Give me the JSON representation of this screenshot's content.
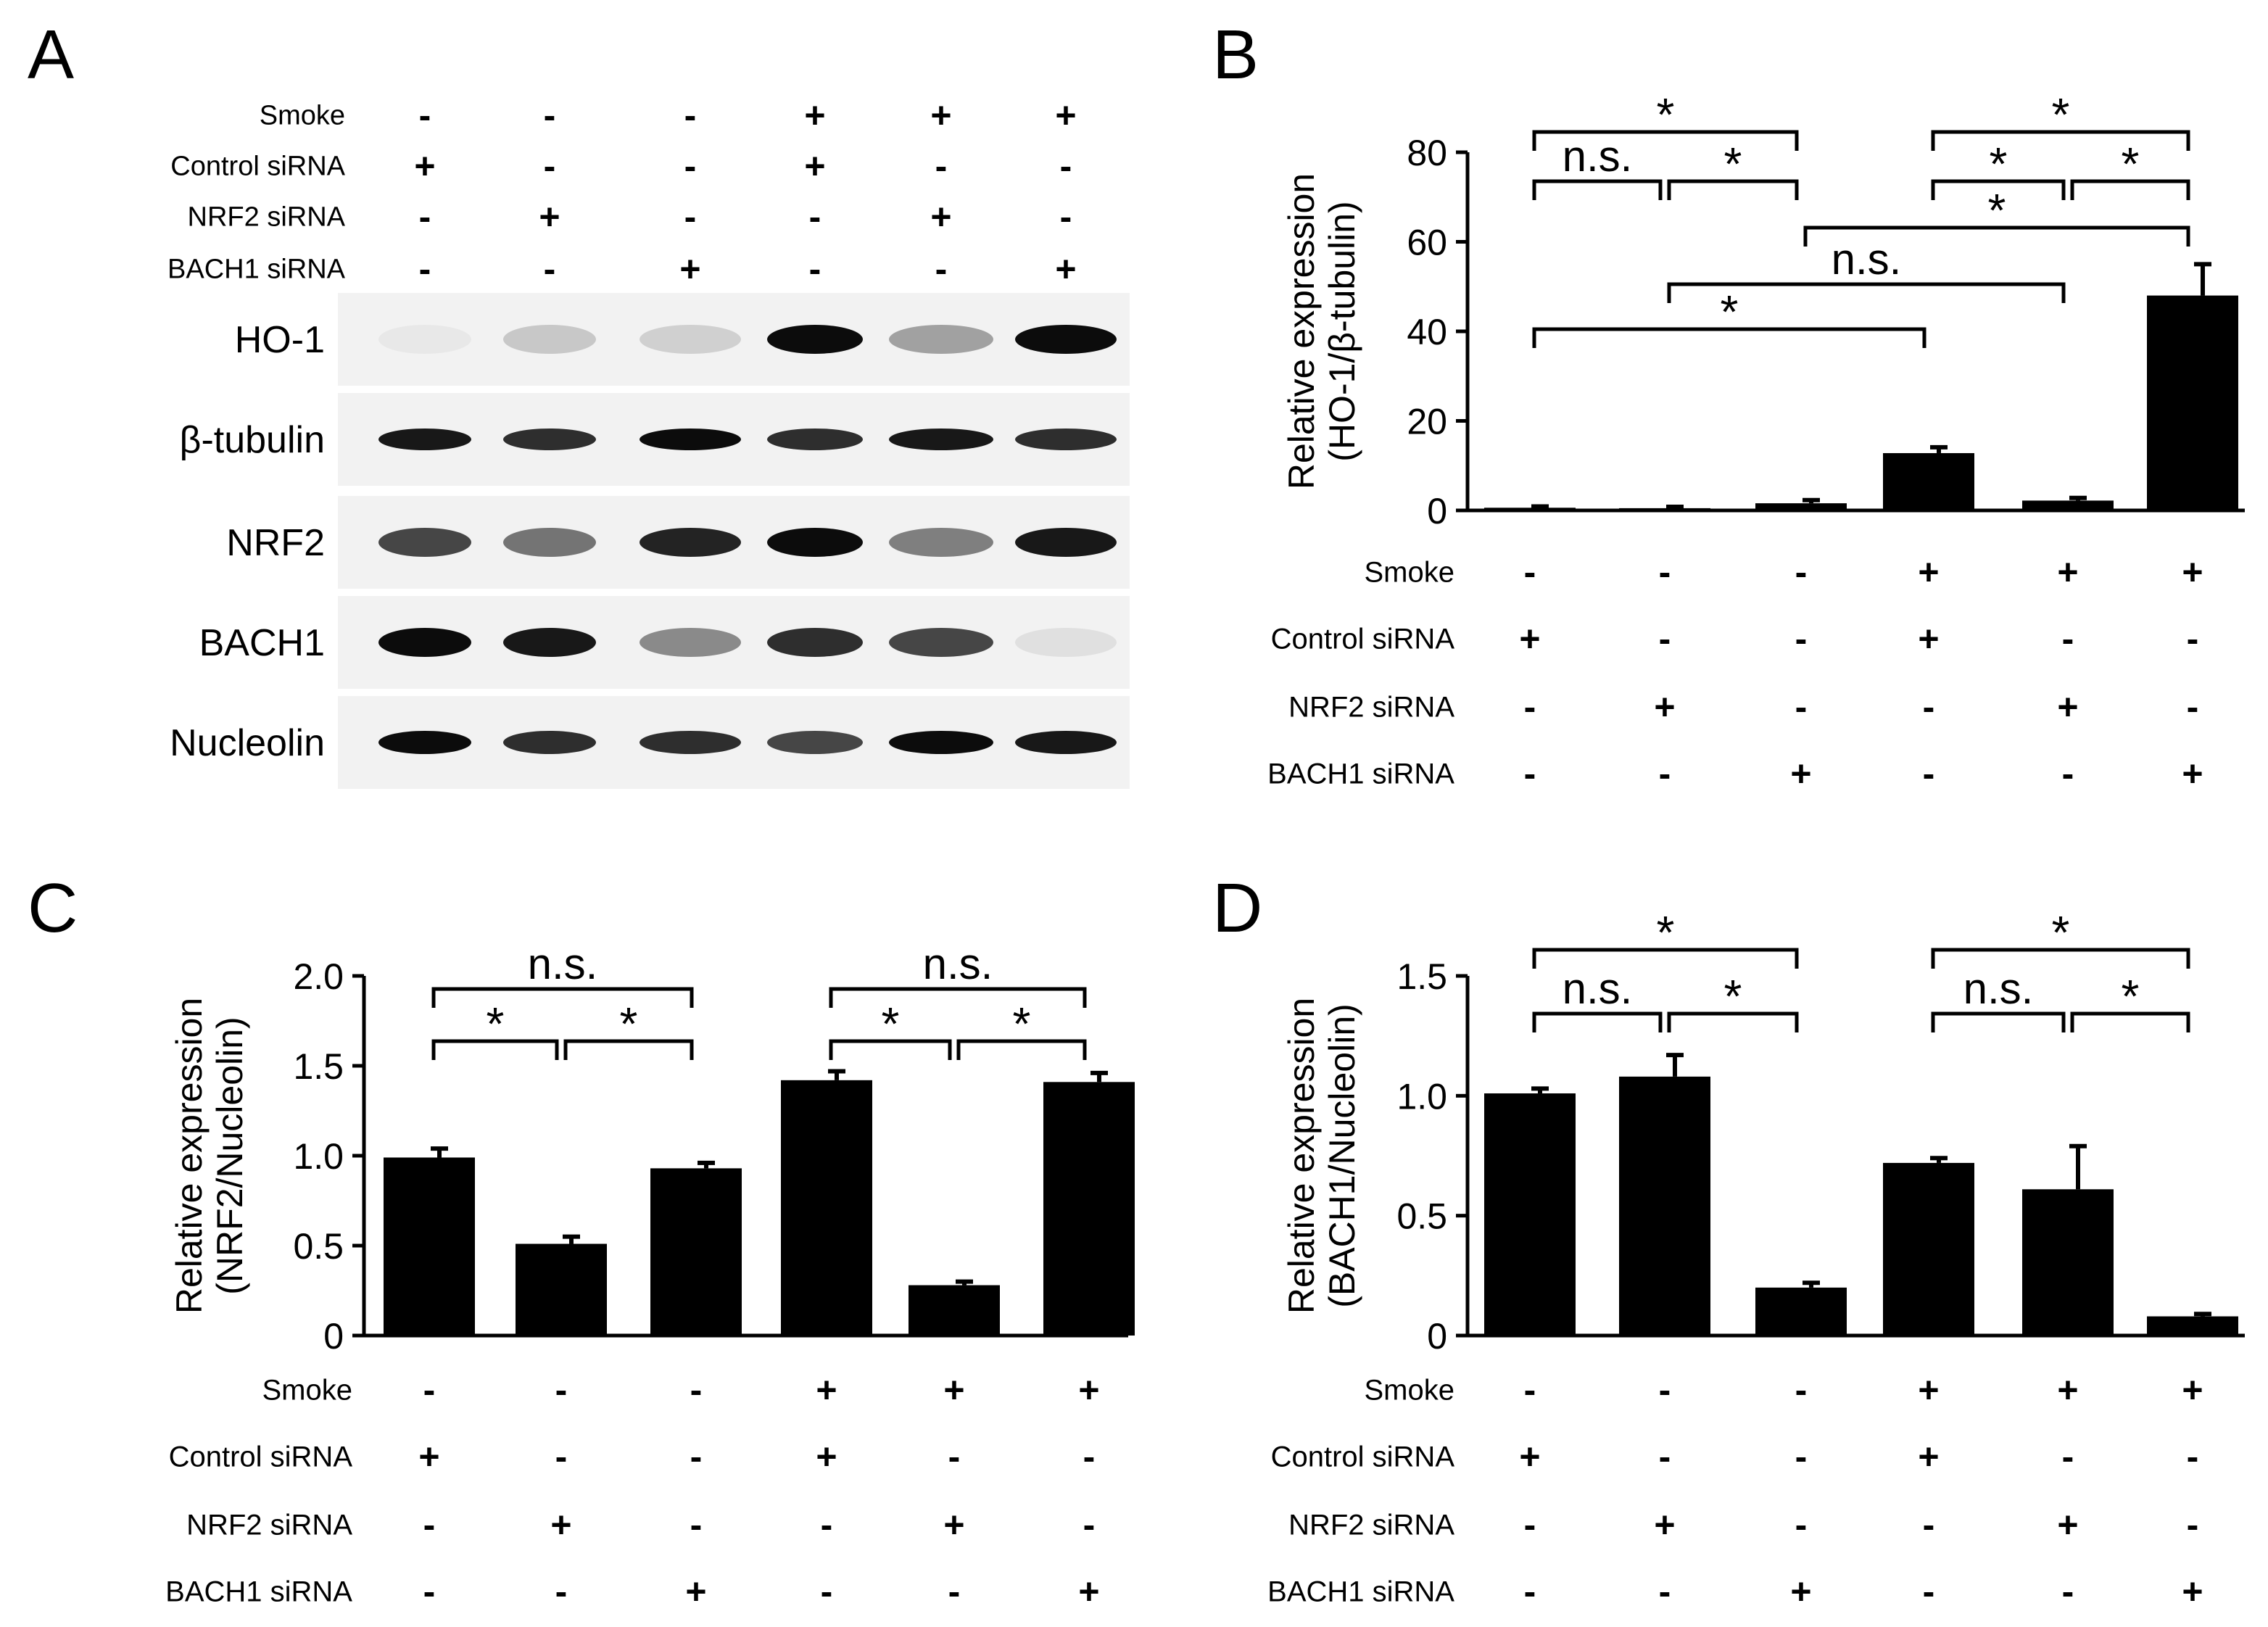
{
  "colors": {
    "bar": "#000000",
    "ink": "#000000",
    "blot_bg": "#f2f2f2",
    "band": "#0c0c0c"
  },
  "panel_letters": [
    "A",
    "B",
    "C",
    "D"
  ],
  "conditions": {
    "row_labels": [
      "Smoke",
      "Control siRNA",
      "NRF2 siRNA",
      "BACH1 siRNA"
    ],
    "signs": [
      [
        "-",
        "-",
        "-",
        "+",
        "+",
        "+"
      ],
      [
        "+",
        "-",
        "-",
        "+",
        "-",
        "-"
      ],
      [
        "-",
        "+",
        "-",
        "-",
        "+",
        "-"
      ],
      [
        "-",
        "-",
        "+",
        "-",
        "-",
        "+"
      ]
    ]
  },
  "western_blot": {
    "rows": [
      {
        "label": "HO-1",
        "intensities": [
          0.04,
          0.18,
          0.15,
          1.0,
          0.35,
          1.0
        ]
      },
      {
        "label": "β-tubulin",
        "intensities": [
          0.95,
          0.85,
          1.0,
          0.85,
          0.95,
          0.85
        ]
      },
      {
        "label": "NRF2",
        "intensities": [
          0.75,
          0.55,
          0.9,
          1.0,
          0.5,
          0.95
        ]
      },
      {
        "label": "BACH1",
        "intensities": [
          1.0,
          0.95,
          0.45,
          0.85,
          0.75,
          0.08
        ]
      },
      {
        "label": "Nucleolin",
        "intensities": [
          1.0,
          0.85,
          0.85,
          0.75,
          1.0,
          0.95
        ]
      }
    ]
  },
  "chart_data": [
    {
      "panel": "B",
      "type": "bar",
      "ylabel": [
        "Relative expression",
        "(HO-1/β-tubulin)"
      ],
      "ylim": [
        0,
        80
      ],
      "yticks": [
        "0",
        "20",
        "40",
        "60",
        "80"
      ],
      "ytick_values": [
        0,
        20,
        40,
        60,
        80
      ],
      "values": [
        0.6,
        0.5,
        1.6,
        12.8,
        2.2,
        48
      ],
      "errors": [
        0.3,
        0.3,
        0.7,
        1.3,
        0.6,
        7
      ],
      "brackets": [
        {
          "from": 0,
          "to": 2,
          "label": "*"
        },
        {
          "from": 3,
          "to": 5,
          "label": "*"
        },
        {
          "from": 0,
          "to": 1,
          "label": "n.s."
        },
        {
          "from": 1,
          "to": 2,
          "label": "*"
        },
        {
          "from": 3,
          "to": 4,
          "label": "*"
        },
        {
          "from": 4,
          "to": 5,
          "label": "*"
        },
        {
          "from": 2,
          "to": 5,
          "label": "*"
        },
        {
          "from": 1,
          "to": 4,
          "label": "n.s."
        },
        {
          "from": 0,
          "to": 3,
          "label": "*"
        }
      ]
    },
    {
      "panel": "C",
      "type": "bar",
      "ylabel": [
        "Relative expression",
        "(NRF2/Nucleolin)"
      ],
      "ylim": [
        0,
        2.0
      ],
      "yticks": [
        "0",
        "0.5",
        "1.0",
        "1.5",
        "2.0"
      ],
      "ytick_values": [
        0,
        0.5,
        1.0,
        1.5,
        2.0
      ],
      "values": [
        0.99,
        0.51,
        0.93,
        1.42,
        0.28,
        1.41
      ],
      "errors": [
        0.05,
        0.04,
        0.03,
        0.05,
        0.02,
        0.05
      ],
      "brackets": [
        {
          "from": 0,
          "to": 2,
          "label": "n.s."
        },
        {
          "from": 3,
          "to": 5,
          "label": "n.s."
        },
        {
          "from": 0,
          "to": 1,
          "label": "*"
        },
        {
          "from": 1,
          "to": 2,
          "label": "*"
        },
        {
          "from": 3,
          "to": 4,
          "label": "*"
        },
        {
          "from": 4,
          "to": 5,
          "label": "*"
        }
      ]
    },
    {
      "panel": "D",
      "type": "bar",
      "ylabel": [
        "Relative expression",
        "(BACH1/Nucleolin)"
      ],
      "ylim": [
        0,
        1.5
      ],
      "yticks": [
        "0",
        "0.5",
        "1.0",
        "1.5"
      ],
      "ytick_values": [
        0,
        0.5,
        1.0,
        1.5
      ],
      "values": [
        1.01,
        1.08,
        0.2,
        0.72,
        0.61,
        0.08
      ],
      "errors": [
        0.02,
        0.09,
        0.02,
        0.02,
        0.18,
        0.01
      ],
      "brackets": [
        {
          "from": 0,
          "to": 2,
          "label": "*"
        },
        {
          "from": 3,
          "to": 5,
          "label": "*"
        },
        {
          "from": 0,
          "to": 1,
          "label": "n.s."
        },
        {
          "from": 1,
          "to": 2,
          "label": "*"
        },
        {
          "from": 3,
          "to": 4,
          "label": "n.s."
        },
        {
          "from": 4,
          "to": 5,
          "label": "*"
        }
      ]
    }
  ]
}
